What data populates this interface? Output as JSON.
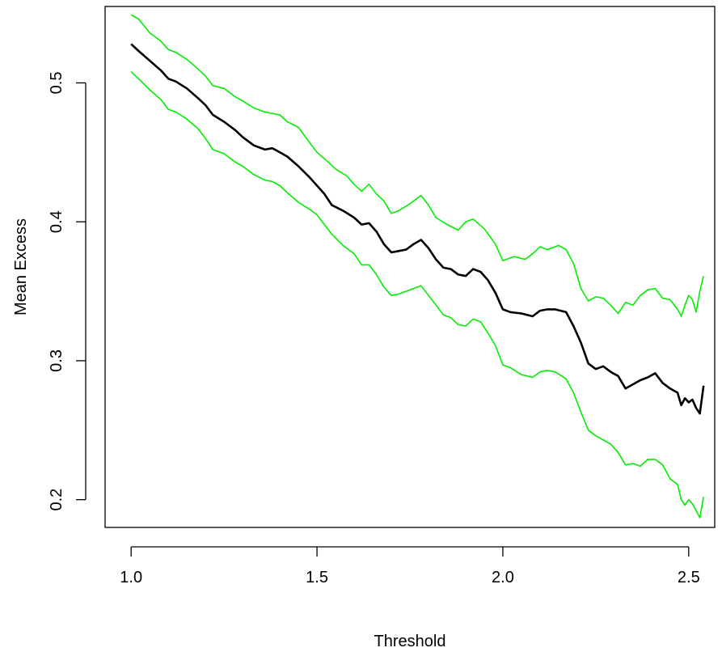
{
  "chart_data": {
    "type": "line",
    "title": "",
    "xlabel": "Threshold",
    "ylabel": "Mean Excess",
    "xlim": [
      0.93,
      2.57
    ],
    "ylim": [
      0.18,
      0.555
    ],
    "xticks": [
      1.0,
      1.5,
      2.0,
      2.5
    ],
    "xtick_labels": [
      "1.0",
      "1.5",
      "2.0",
      "2.5"
    ],
    "yticks": [
      0.2,
      0.3,
      0.4,
      0.5
    ],
    "ytick_labels": [
      "0.2",
      "0.3",
      "0.4",
      "0.5"
    ],
    "grid": false,
    "legend": "none",
    "series": [
      {
        "key": "upper",
        "color": "#00ee00",
        "points": [
          [
            1.0,
            0.549
          ],
          [
            1.02,
            0.546
          ],
          [
            1.05,
            0.536
          ],
          [
            1.08,
            0.53
          ],
          [
            1.1,
            0.524
          ],
          [
            1.12,
            0.522
          ],
          [
            1.15,
            0.517
          ],
          [
            1.18,
            0.51
          ],
          [
            1.2,
            0.505
          ],
          [
            1.22,
            0.498
          ],
          [
            1.25,
            0.496
          ],
          [
            1.28,
            0.49
          ],
          [
            1.3,
            0.487
          ],
          [
            1.33,
            0.482
          ],
          [
            1.36,
            0.479
          ],
          [
            1.4,
            0.477
          ],
          [
            1.42,
            0.472
          ],
          [
            1.45,
            0.468
          ],
          [
            1.48,
            0.457
          ],
          [
            1.5,
            0.45
          ],
          [
            1.53,
            0.443
          ],
          [
            1.55,
            0.438
          ],
          [
            1.58,
            0.433
          ],
          [
            1.6,
            0.427
          ],
          [
            1.62,
            0.422
          ],
          [
            1.64,
            0.427
          ],
          [
            1.66,
            0.42
          ],
          [
            1.68,
            0.415
          ],
          [
            1.7,
            0.406
          ],
          [
            1.72,
            0.408
          ],
          [
            1.75,
            0.413
          ],
          [
            1.78,
            0.419
          ],
          [
            1.8,
            0.412
          ],
          [
            1.82,
            0.403
          ],
          [
            1.85,
            0.398
          ],
          [
            1.88,
            0.394
          ],
          [
            1.9,
            0.4
          ],
          [
            1.92,
            0.402
          ],
          [
            1.95,
            0.395
          ],
          [
            1.98,
            0.384
          ],
          [
            2.0,
            0.372
          ],
          [
            2.03,
            0.375
          ],
          [
            2.06,
            0.373
          ],
          [
            2.08,
            0.377
          ],
          [
            2.1,
            0.382
          ],
          [
            2.12,
            0.38
          ],
          [
            2.15,
            0.383
          ],
          [
            2.17,
            0.38
          ],
          [
            2.19,
            0.37
          ],
          [
            2.21,
            0.352
          ],
          [
            2.23,
            0.343
          ],
          [
            2.25,
            0.346
          ],
          [
            2.27,
            0.345
          ],
          [
            2.29,
            0.34
          ],
          [
            2.31,
            0.334
          ],
          [
            2.33,
            0.342
          ],
          [
            2.35,
            0.34
          ],
          [
            2.37,
            0.347
          ],
          [
            2.39,
            0.351
          ],
          [
            2.41,
            0.352
          ],
          [
            2.43,
            0.345
          ],
          [
            2.45,
            0.344
          ],
          [
            2.47,
            0.337
          ],
          [
            2.48,
            0.332
          ],
          [
            2.49,
            0.34
          ],
          [
            2.5,
            0.347
          ],
          [
            2.51,
            0.344
          ],
          [
            2.52,
            0.335
          ],
          [
            2.53,
            0.35
          ],
          [
            2.54,
            0.361
          ]
        ]
      },
      {
        "key": "mean",
        "color": "#000000",
        "points": [
          [
            1.0,
            0.528
          ],
          [
            1.02,
            0.523
          ],
          [
            1.05,
            0.516
          ],
          [
            1.08,
            0.509
          ],
          [
            1.1,
            0.503
          ],
          [
            1.12,
            0.501
          ],
          [
            1.15,
            0.496
          ],
          [
            1.18,
            0.489
          ],
          [
            1.2,
            0.484
          ],
          [
            1.22,
            0.477
          ],
          [
            1.25,
            0.472
          ],
          [
            1.28,
            0.466
          ],
          [
            1.3,
            0.461
          ],
          [
            1.33,
            0.455
          ],
          [
            1.36,
            0.452
          ],
          [
            1.38,
            0.453
          ],
          [
            1.4,
            0.45
          ],
          [
            1.42,
            0.447
          ],
          [
            1.45,
            0.44
          ],
          [
            1.48,
            0.432
          ],
          [
            1.5,
            0.426
          ],
          [
            1.52,
            0.42
          ],
          [
            1.54,
            0.412
          ],
          [
            1.57,
            0.408
          ],
          [
            1.6,
            0.403
          ],
          [
            1.62,
            0.398
          ],
          [
            1.64,
            0.399
          ],
          [
            1.66,
            0.393
          ],
          [
            1.68,
            0.384
          ],
          [
            1.7,
            0.378
          ],
          [
            1.72,
            0.379
          ],
          [
            1.74,
            0.38
          ],
          [
            1.76,
            0.384
          ],
          [
            1.78,
            0.387
          ],
          [
            1.8,
            0.381
          ],
          [
            1.82,
            0.373
          ],
          [
            1.84,
            0.367
          ],
          [
            1.86,
            0.366
          ],
          [
            1.88,
            0.362
          ],
          [
            1.9,
            0.361
          ],
          [
            1.92,
            0.366
          ],
          [
            1.94,
            0.364
          ],
          [
            1.96,
            0.358
          ],
          [
            1.98,
            0.349
          ],
          [
            2.0,
            0.337
          ],
          [
            2.02,
            0.335
          ],
          [
            2.05,
            0.334
          ],
          [
            2.08,
            0.332
          ],
          [
            2.1,
            0.336
          ],
          [
            2.12,
            0.337
          ],
          [
            2.14,
            0.337
          ],
          [
            2.17,
            0.335
          ],
          [
            2.19,
            0.325
          ],
          [
            2.21,
            0.313
          ],
          [
            2.23,
            0.298
          ],
          [
            2.25,
            0.294
          ],
          [
            2.27,
            0.296
          ],
          [
            2.29,
            0.292
          ],
          [
            2.31,
            0.289
          ],
          [
            2.33,
            0.28
          ],
          [
            2.35,
            0.283
          ],
          [
            2.37,
            0.286
          ],
          [
            2.39,
            0.288
          ],
          [
            2.41,
            0.291
          ],
          [
            2.43,
            0.284
          ],
          [
            2.45,
            0.28
          ],
          [
            2.47,
            0.277
          ],
          [
            2.48,
            0.268
          ],
          [
            2.49,
            0.273
          ],
          [
            2.5,
            0.27
          ],
          [
            2.51,
            0.272
          ],
          [
            2.52,
            0.266
          ],
          [
            2.53,
            0.262
          ],
          [
            2.54,
            0.282
          ]
        ]
      },
      {
        "key": "lower",
        "color": "#00ee00",
        "points": [
          [
            1.0,
            0.508
          ],
          [
            1.02,
            0.503
          ],
          [
            1.05,
            0.495
          ],
          [
            1.08,
            0.488
          ],
          [
            1.1,
            0.481
          ],
          [
            1.12,
            0.479
          ],
          [
            1.15,
            0.474
          ],
          [
            1.18,
            0.467
          ],
          [
            1.2,
            0.46
          ],
          [
            1.22,
            0.452
          ],
          [
            1.25,
            0.449
          ],
          [
            1.28,
            0.443
          ],
          [
            1.3,
            0.44
          ],
          [
            1.33,
            0.434
          ],
          [
            1.36,
            0.43
          ],
          [
            1.38,
            0.429
          ],
          [
            1.4,
            0.426
          ],
          [
            1.42,
            0.421
          ],
          [
            1.45,
            0.414
          ],
          [
            1.48,
            0.409
          ],
          [
            1.5,
            0.405
          ],
          [
            1.52,
            0.398
          ],
          [
            1.54,
            0.391
          ],
          [
            1.57,
            0.383
          ],
          [
            1.6,
            0.377
          ],
          [
            1.62,
            0.369
          ],
          [
            1.64,
            0.369
          ],
          [
            1.66,
            0.362
          ],
          [
            1.68,
            0.353
          ],
          [
            1.7,
            0.347
          ],
          [
            1.72,
            0.348
          ],
          [
            1.74,
            0.35
          ],
          [
            1.76,
            0.352
          ],
          [
            1.78,
            0.354
          ],
          [
            1.8,
            0.347
          ],
          [
            1.82,
            0.34
          ],
          [
            1.84,
            0.333
          ],
          [
            1.86,
            0.331
          ],
          [
            1.88,
            0.326
          ],
          [
            1.9,
            0.325
          ],
          [
            1.92,
            0.33
          ],
          [
            1.94,
            0.328
          ],
          [
            1.96,
            0.32
          ],
          [
            1.98,
            0.311
          ],
          [
            2.0,
            0.297
          ],
          [
            2.02,
            0.295
          ],
          [
            2.05,
            0.29
          ],
          [
            2.08,
            0.288
          ],
          [
            2.1,
            0.292
          ],
          [
            2.12,
            0.293
          ],
          [
            2.14,
            0.292
          ],
          [
            2.17,
            0.287
          ],
          [
            2.19,
            0.277
          ],
          [
            2.21,
            0.263
          ],
          [
            2.23,
            0.25
          ],
          [
            2.25,
            0.246
          ],
          [
            2.27,
            0.243
          ],
          [
            2.29,
            0.24
          ],
          [
            2.31,
            0.234
          ],
          [
            2.33,
            0.225
          ],
          [
            2.35,
            0.226
          ],
          [
            2.37,
            0.224
          ],
          [
            2.39,
            0.229
          ],
          [
            2.41,
            0.229
          ],
          [
            2.43,
            0.225
          ],
          [
            2.45,
            0.215
          ],
          [
            2.47,
            0.211
          ],
          [
            2.48,
            0.2
          ],
          [
            2.49,
            0.196
          ],
          [
            2.5,
            0.2
          ],
          [
            2.51,
            0.197
          ],
          [
            2.52,
            0.192
          ],
          [
            2.53,
            0.187
          ],
          [
            2.54,
            0.202
          ]
        ]
      }
    ]
  }
}
